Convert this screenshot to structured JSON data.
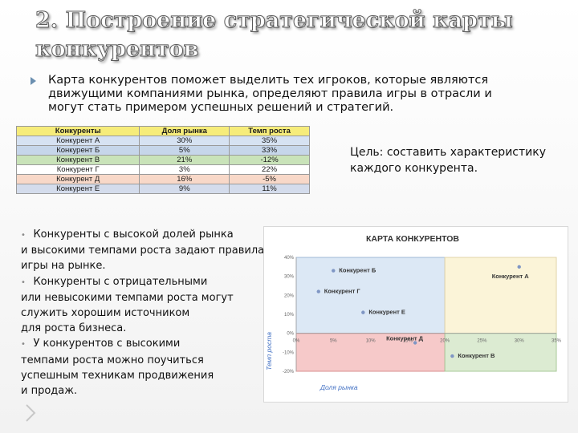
{
  "slide": {
    "title": "2. Построение стратегической карты конкурентов",
    "intro": "Карта конкурентов поможет выделить тех игроков, которые являются движущими компаниями рынка, определяют правила игры в отрасли и могут стать примером успешных решений и стратегий.",
    "goal": "Цель: составить характеристику каждого конкурента.",
    "bullets": [
      {
        "lines": [
          "Конкуренты с высокой долей рынка",
          "и высокими темпами роста задают правила",
          "игры на рынке."
        ]
      },
      {
        "lines": [
          "Конкуренты с отрицательными",
          "или невысокими  темпами роста могут",
          "служить хорошим источником",
          " для роста бизнеса."
        ]
      },
      {
        "lines": [
          "У конкурентов с высокими",
          "темпами роста можно поучиться",
          "успешным техникам  продвижения",
          "и продаж."
        ]
      }
    ]
  },
  "table": {
    "headers": [
      "Конкуренты",
      "Доля рынка",
      "Темп роста"
    ],
    "rows": [
      {
        "name": "Конкурент А",
        "share": "30%",
        "growth": "35%",
        "color": "#d6e2f2"
      },
      {
        "name": "Конкурент Б",
        "share": "5%",
        "growth": "33%",
        "color": "#c6d6ea"
      },
      {
        "name": "Конкурент В",
        "share": "21%",
        "growth": "-12%",
        "color": "#c9e3b9"
      },
      {
        "name": "Конкурент Г",
        "share": "3%",
        "growth": "22%",
        "color": "#ffffff"
      },
      {
        "name": "Конкурент Д",
        "share": "16%",
        "growth": "-5%",
        "color": "#f8d8c8"
      },
      {
        "name": "Конкурент Е",
        "share": "9%",
        "growth": "11%",
        "color": "#d4dcec"
      }
    ]
  },
  "chart_data": {
    "type": "scatter",
    "title": "КАРТА КОНКУРЕНТОВ",
    "xlabel": "Доля рынка",
    "ylabel": "Темп роста",
    "xlim": [
      0,
      35
    ],
    "ylim": [
      -20,
      40
    ],
    "x_ticks": [
      "0%",
      "5%",
      "10%",
      "15%",
      "20%",
      "25%",
      "30%",
      "35%"
    ],
    "y_ticks": [
      "40%",
      "30%",
      "20%",
      "10%",
      "0%",
      "-10%",
      "-20%"
    ],
    "points": [
      {
        "label": "Конкурент А",
        "x": 30,
        "y": 35
      },
      {
        "label": "Конкурент Б",
        "x": 5,
        "y": 33
      },
      {
        "label": "Конкурент В",
        "x": 21,
        "y": -12
      },
      {
        "label": "Конкурент Г",
        "x": 3,
        "y": 22
      },
      {
        "label": "Конкурент Д",
        "x": 16,
        "y": -5
      },
      {
        "label": "Конкурент Е",
        "x": 9,
        "y": 11
      }
    ],
    "quadrant_colors": {
      "top_left": "#dce8f5",
      "top_right": "#fbf4d8",
      "bottom_left": "#f6c9c9",
      "bottom_right": "#dcebd2"
    },
    "grid": false,
    "legend": "none"
  }
}
